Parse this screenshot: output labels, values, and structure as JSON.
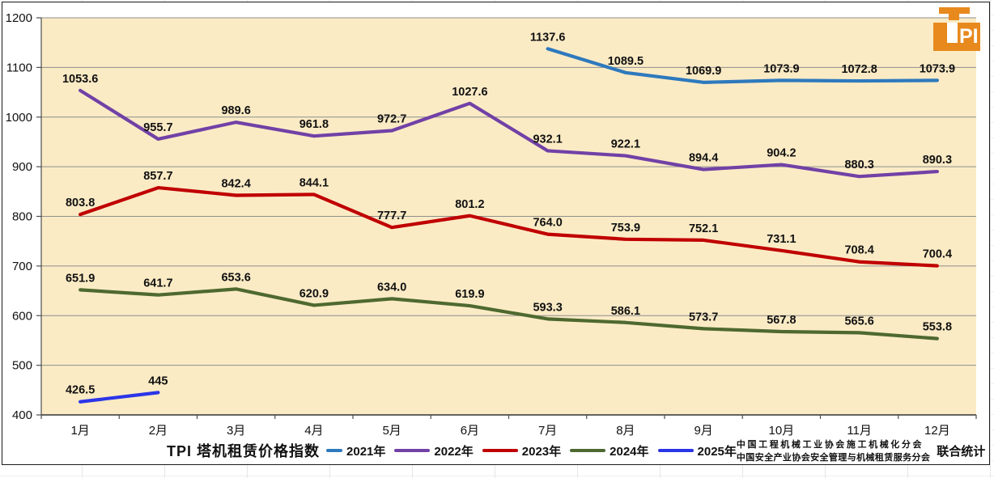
{
  "logo": {
    "t": "T",
    "pi": "PI",
    "color": "#E8891E"
  },
  "chart_data": {
    "type": "line",
    "title": "TPI 塔机租赁价格指数",
    "x_categories": [
      "1月",
      "2月",
      "3月",
      "4月",
      "5月",
      "6月",
      "7月",
      "8月",
      "9月",
      "10月",
      "11月",
      "12月"
    ],
    "ylim": [
      400,
      1200
    ],
    "yticks": [
      400,
      500,
      600,
      700,
      800,
      900,
      1000,
      1100,
      1200
    ],
    "grid": "horizontal-only",
    "legend_position": "bottom",
    "plot_background": "#FBEBC5",
    "series": [
      {
        "name": "2021年",
        "color": "#2E79BD",
        "start_month": 7,
        "values": [
          1137.6,
          1089.5,
          1069.9,
          1073.9,
          1072.8,
          1073.9
        ],
        "labels": [
          "1137.6",
          "1089.5",
          "1069.9",
          "1073.9",
          "1072.8",
          "1073.9"
        ]
      },
      {
        "name": "2022年",
        "color": "#7141A6",
        "start_month": 1,
        "values": [
          1053.6,
          955.7,
          989.6,
          961.8,
          972.7,
          1027.6,
          932.1,
          922.1,
          894.4,
          904.2,
          880.3,
          890.3
        ],
        "labels": [
          "1053.6",
          "955.7",
          "989.6",
          "961.8",
          "972.7",
          "1027.6",
          "932.1",
          "922.1",
          "894.4",
          "904.2",
          "880.3",
          "890.3"
        ]
      },
      {
        "name": "2023年",
        "color": "#C00000",
        "start_month": 1,
        "values": [
          803.8,
          857.7,
          842.4,
          844.1,
          777.7,
          801.2,
          764.0,
          753.9,
          752.1,
          731.1,
          708.4,
          700.4
        ],
        "labels": [
          "803.8",
          "857.7",
          "842.4",
          "844.1",
          "777.7",
          "801.2",
          "764.0",
          "753.9",
          "752.1",
          "731.1",
          "708.4",
          "700.4"
        ]
      },
      {
        "name": "2024年",
        "color": "#4E6930",
        "start_month": 1,
        "values": [
          651.9,
          641.7,
          653.6,
          620.9,
          634.0,
          619.9,
          593.3,
          586.1,
          573.7,
          567.8,
          565.6,
          553.8
        ],
        "labels": [
          "651.9",
          "641.7",
          "653.6",
          "620.9",
          "634.0",
          "619.9",
          "593.3",
          "586.1",
          "573.7",
          "567.8",
          "565.6",
          "553.8"
        ]
      },
      {
        "name": "2025年",
        "color": "#2B35E8",
        "start_month": 1,
        "values": [
          426.5,
          445
        ],
        "labels": [
          "426.5",
          "445"
        ]
      }
    ]
  },
  "footer": {
    "org_line1": "中国工程机械工业协会施工机械化分会",
    "org_line2": "中国安全产业协会安全管理与机械租赁服务分会",
    "joint": "联合统计"
  }
}
